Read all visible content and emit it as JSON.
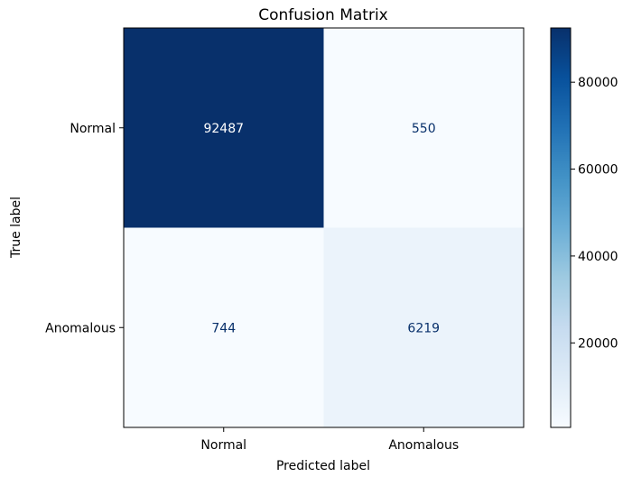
{
  "chart_data": {
    "type": "heatmap",
    "title": "Confusion Matrix",
    "xlabel": "Predicted label",
    "ylabel": "True label",
    "x_categories": [
      "Normal",
      "Anomalous"
    ],
    "y_categories": [
      "Normal",
      "Anomalous"
    ],
    "values": [
      [
        92487,
        550
      ],
      [
        744,
        6219
      ]
    ],
    "colormap": "Blues",
    "color_range": [
      550,
      92487
    ],
    "colorbar_ticks": [
      20000,
      40000,
      60000,
      80000
    ],
    "colorbar_tick_labels": [
      "20000",
      "40000",
      "60000",
      "80000"
    ],
    "cell_text_color_dark_bg": "#ffffff",
    "cell_text_color_light_bg": "#08306b",
    "grid": false
  }
}
